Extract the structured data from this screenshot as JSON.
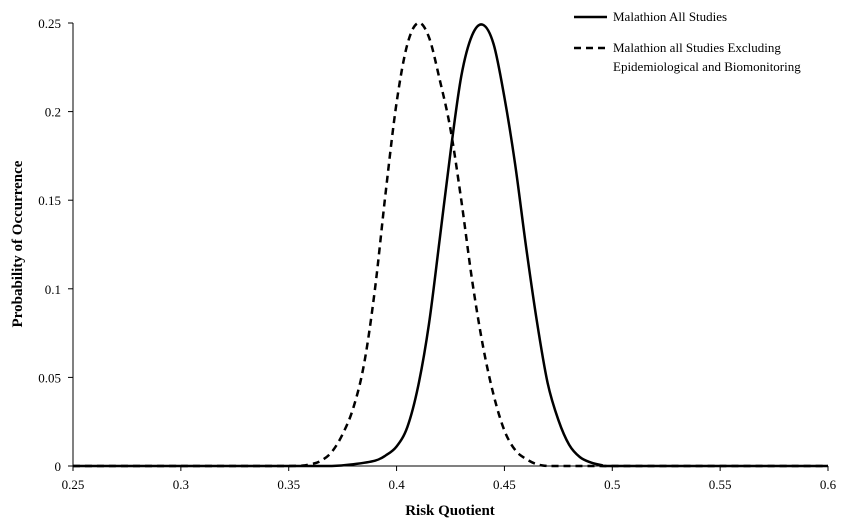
{
  "chart_data": {
    "type": "line",
    "title": "",
    "xlabel": "Risk Quotient",
    "ylabel": "Probability of Occurrence",
    "xlim": [
      0.25,
      0.6
    ],
    "ylim": [
      0,
      0.25
    ],
    "x_ticks": [
      "0.25",
      "0.3",
      "0.35",
      "0.4",
      "0.45",
      "0.5",
      "0.55",
      "0.6"
    ],
    "y_ticks": [
      "0",
      "0.05",
      "0.1",
      "0.15",
      "0.2",
      "0.25"
    ],
    "grid": false,
    "legend_position": "top-right",
    "series": [
      {
        "name": "Malathion All Studies",
        "style": "solid",
        "color": "#000000",
        "x": [
          0.25,
          0.3,
          0.35,
          0.37,
          0.38,
          0.39,
          0.395,
          0.4,
          0.405,
          0.41,
          0.415,
          0.42,
          0.425,
          0.43,
          0.435,
          0.44,
          0.445,
          0.45,
          0.455,
          0.46,
          0.465,
          0.47,
          0.475,
          0.48,
          0.485,
          0.49,
          0.495,
          0.5,
          0.55,
          0.6
        ],
        "y": [
          0,
          0,
          0,
          0,
          0.001,
          0.003,
          0.006,
          0.011,
          0.022,
          0.045,
          0.08,
          0.128,
          0.177,
          0.22,
          0.243,
          0.249,
          0.238,
          0.208,
          0.17,
          0.124,
          0.082,
          0.047,
          0.026,
          0.012,
          0.005,
          0.002,
          0.0005,
          0,
          0,
          0
        ]
      },
      {
        "name": "Malathion all Studies Excluding Epidemiological and Biomonitoring",
        "style": "dashed",
        "color": "#000000",
        "x": [
          0.25,
          0.3,
          0.35,
          0.36,
          0.365,
          0.37,
          0.375,
          0.38,
          0.385,
          0.39,
          0.395,
          0.4,
          0.405,
          0.41,
          0.415,
          0.42,
          0.425,
          0.43,
          0.435,
          0.44,
          0.445,
          0.45,
          0.455,
          0.46,
          0.465,
          0.47,
          0.475,
          0.5,
          0.55,
          0.6
        ],
        "y": [
          0,
          0,
          0,
          0.001,
          0.003,
          0.008,
          0.018,
          0.033,
          0.058,
          0.1,
          0.155,
          0.205,
          0.238,
          0.25,
          0.242,
          0.218,
          0.19,
          0.15,
          0.105,
          0.068,
          0.04,
          0.02,
          0.009,
          0.004,
          0.001,
          0,
          0,
          0,
          0,
          0
        ]
      }
    ]
  }
}
